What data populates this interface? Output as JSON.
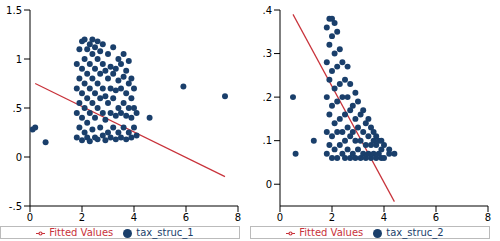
{
  "chart_data": [
    {
      "type": "scatter",
      "xlim": [
        0,
        8
      ],
      "ylim": [
        -0.5,
        1.5
      ],
      "xticks": [
        0,
        2,
        4,
        6,
        8
      ],
      "yticks": [
        {
          "value": -0.5,
          "label": "-.5"
        },
        0,
        {
          "value": 0.5,
          "label": ".5"
        },
        1,
        {
          "value": 1.5,
          "label": "1.5"
        }
      ],
      "grid": false,
      "legend": "bottom",
      "series": [
        {
          "name": "tax_struc_1",
          "type": "scatter",
          "color": "#1a3f6b",
          "marker": "circle",
          "x": [
            1.8,
            1.8,
            1.8,
            1.8,
            1.9,
            1.9,
            1.9,
            1.9,
            2.0,
            2.0,
            2.0,
            2.0,
            2.0,
            2.1,
            2.1,
            2.1,
            2.1,
            2.1,
            2.2,
            2.2,
            2.2,
            2.2,
            2.2,
            2.3,
            2.3,
            2.3,
            2.3,
            2.3,
            2.4,
            2.4,
            2.4,
            2.4,
            2.4,
            2.5,
            2.5,
            2.5,
            2.5,
            2.5,
            2.6,
            2.6,
            2.6,
            2.6,
            2.6,
            2.7,
            2.7,
            2.7,
            2.7,
            2.8,
            2.8,
            2.8,
            2.8,
            2.8,
            2.9,
            2.9,
            2.9,
            2.9,
            3.0,
            3.0,
            3.0,
            3.0,
            3.1,
            3.1,
            3.1,
            3.1,
            3.2,
            3.2,
            3.2,
            3.2,
            3.3,
            3.3,
            3.3,
            3.3,
            3.4,
            3.4,
            3.4,
            3.4,
            3.5,
            3.5,
            3.5,
            3.5,
            3.6,
            3.6,
            3.6,
            3.6,
            3.7,
            3.7,
            3.7,
            3.7,
            3.8,
            3.8,
            3.8,
            3.8,
            3.9,
            3.9,
            3.9,
            3.9,
            4.0,
            4.0,
            4.0,
            4.1,
            4.1,
            0.1,
            0.2,
            0.6,
            5.9,
            7.5,
            4.6
          ],
          "values": [
            0.2,
            0.45,
            0.7,
            0.95,
            0.3,
            0.55,
            0.8,
            1.1,
            0.17,
            0.4,
            0.65,
            0.9,
            1.18,
            0.25,
            0.5,
            0.75,
            1.0,
            1.2,
            0.2,
            0.35,
            0.6,
            0.85,
            1.1,
            0.16,
            0.45,
            0.7,
            0.95,
            1.15,
            0.28,
            0.55,
            0.8,
            1.05,
            1.2,
            0.2,
            0.4,
            0.65,
            0.9,
            1.12,
            0.18,
            0.5,
            0.75,
            1.0,
            1.18,
            0.3,
            0.6,
            0.85,
            1.08,
            0.22,
            0.45,
            0.7,
            0.95,
            1.15,
            0.17,
            0.38,
            0.62,
            0.88,
            0.25,
            0.55,
            0.8,
            1.05,
            0.2,
            0.45,
            0.7,
            0.92,
            0.3,
            0.6,
            0.85,
            1.12,
            0.18,
            0.42,
            0.68,
            0.9,
            0.25,
            0.5,
            0.78,
            1.0,
            0.2,
            0.45,
            0.7,
            0.95,
            0.3,
            0.55,
            0.82,
            1.05,
            0.18,
            0.42,
            0.65,
            0.88,
            0.25,
            0.5,
            0.75,
            0.98,
            0.2,
            0.4,
            0.6,
            0.8,
            0.3,
            0.5,
            0.7,
            0.22,
            0.45,
            0.28,
            0.3,
            0.15,
            0.72,
            0.62,
            0.4
          ]
        },
        {
          "name": "Fitted Values",
          "type": "line",
          "color": "#c8323a",
          "line_style": "solid",
          "x": [
            0.2,
            7.5
          ],
          "values": [
            0.75,
            -0.2
          ]
        }
      ]
    },
    {
      "type": "scatter",
      "xlim": [
        0,
        8
      ],
      "ylim": [
        -0.05,
        0.4
      ],
      "xticks": [
        0,
        2,
        4,
        6,
        8
      ],
      "yticks": [
        0,
        {
          "value": 0.1,
          "label": ".1"
        },
        {
          "value": 0.2,
          "label": ".2"
        },
        {
          "value": 0.3,
          "label": ".3"
        },
        {
          "value": 0.4,
          "label": ".4"
        }
      ],
      "grid": false,
      "legend": "bottom",
      "series": [
        {
          "name": "tax_struc_2",
          "type": "scatter",
          "color": "#1a3f6b",
          "marker": "circle",
          "x": [
            1.8,
            1.8,
            1.8,
            1.8,
            1.8,
            1.9,
            1.9,
            1.9,
            1.9,
            1.9,
            2.0,
            2.0,
            2.0,
            2.0,
            2.0,
            2.0,
            2.1,
            2.1,
            2.1,
            2.1,
            2.1,
            2.2,
            2.2,
            2.2,
            2.2,
            2.2,
            2.3,
            2.3,
            2.3,
            2.3,
            2.4,
            2.4,
            2.4,
            2.4,
            2.5,
            2.5,
            2.5,
            2.5,
            2.6,
            2.6,
            2.6,
            2.6,
            2.7,
            2.7,
            2.7,
            2.7,
            2.8,
            2.8,
            2.8,
            2.9,
            2.9,
            2.9,
            2.9,
            3.0,
            3.0,
            3.0,
            3.1,
            3.1,
            3.1,
            3.2,
            3.2,
            3.2,
            3.3,
            3.3,
            3.3,
            3.4,
            3.4,
            3.4,
            3.5,
            3.5,
            3.5,
            3.6,
            3.6,
            3.6,
            3.7,
            3.7,
            3.7,
            3.8,
            3.8,
            3.9,
            3.9,
            3.9,
            4.0,
            4.0,
            4.2,
            4.2,
            4.4,
            0.5,
            0.6,
            1.3
          ],
          "values": [
            0.07,
            0.12,
            0.2,
            0.28,
            0.36,
            0.09,
            0.16,
            0.24,
            0.32,
            0.38,
            0.06,
            0.11,
            0.18,
            0.26,
            0.34,
            0.38,
            0.08,
            0.14,
            0.22,
            0.3,
            0.37,
            0.06,
            0.12,
            0.19,
            0.27,
            0.35,
            0.09,
            0.15,
            0.23,
            0.31,
            0.07,
            0.12,
            0.2,
            0.28,
            0.06,
            0.1,
            0.16,
            0.24,
            0.08,
            0.13,
            0.2,
            0.27,
            0.06,
            0.11,
            0.17,
            0.23,
            0.07,
            0.12,
            0.18,
            0.06,
            0.1,
            0.15,
            0.21,
            0.08,
            0.13,
            0.19,
            0.06,
            0.1,
            0.16,
            0.07,
            0.12,
            0.17,
            0.06,
            0.09,
            0.14,
            0.07,
            0.11,
            0.15,
            0.06,
            0.09,
            0.13,
            0.07,
            0.1,
            0.12,
            0.06,
            0.09,
            0.11,
            0.07,
            0.1,
            0.06,
            0.08,
            0.1,
            0.06,
            0.09,
            0.07,
            0.08,
            0.07,
            0.2,
            0.07,
            0.1
          ]
        },
        {
          "name": "Fitted Values",
          "type": "line",
          "color": "#c8323a",
          "line_style": "solid",
          "x": [
            0.5,
            4.4
          ],
          "values": [
            0.39,
            -0.04
          ]
        }
      ]
    }
  ]
}
